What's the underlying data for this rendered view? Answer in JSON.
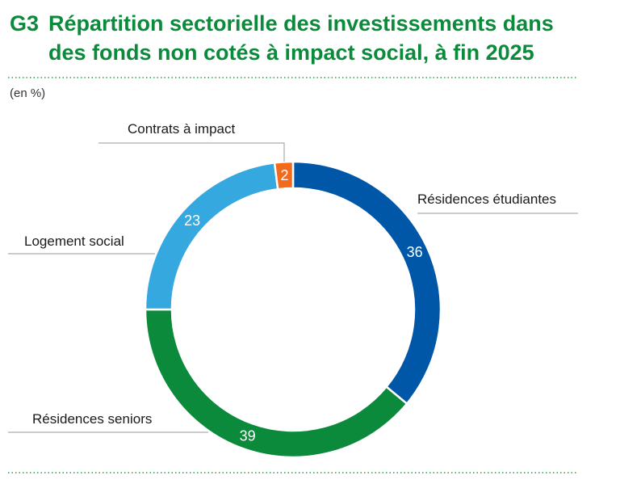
{
  "header": {
    "code": "G3",
    "title_line1": "Répartition sectorielle des investissements dans",
    "title_line2": "des fonds non cotés à impact social, à fin 2025",
    "unit": "(en %)"
  },
  "colors": {
    "title": "#0a8a3a",
    "separator": "#2e9c4f",
    "Résidences étudiantes": "#0057a8",
    "Résidences seniors": "#0a8a3a",
    "Logement social": "#35a8df",
    "Contrats à impact": "#f26a1b"
  },
  "chart_data": {
    "type": "pie",
    "donut": true,
    "unit": "%",
    "series": [
      {
        "name": "",
        "slices": [
          {
            "label": "Résidences étudiantes",
            "value": 36
          },
          {
            "label": "Résidences seniors",
            "value": 39
          },
          {
            "label": "Logement social",
            "value": 23
          },
          {
            "label": "Contrats à impact",
            "value": 2
          }
        ]
      }
    ],
    "legend": "none",
    "data_labels": true
  }
}
